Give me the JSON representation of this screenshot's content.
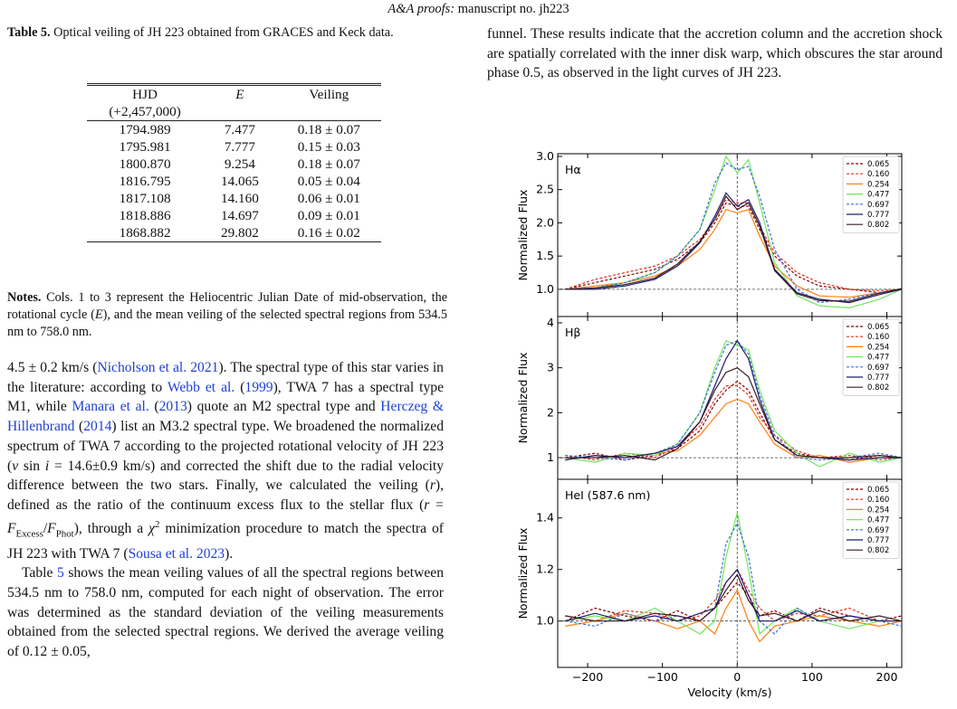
{
  "header": [
    {
      "text": "A&A proofs:",
      "style": "i"
    },
    " manuscript no. jh223"
  ],
  "table_caption": [
    {
      "text": "Table 5.",
      "style": "b"
    },
    " Optical veiling of JH 223 obtained from GRACES and Keck data."
  ],
  "table": {
    "header": [
      [
        "HJD",
        "(+2,457,000)"
      ],
      [
        {
          "text": "E",
          "style": "i"
        }
      ],
      [
        "Veiling"
      ]
    ],
    "rows": [
      [
        "1794.989",
        "7.477",
        "0.18 ± 0.07"
      ],
      [
        "1795.981",
        "7.777",
        "0.15 ± 0.03"
      ],
      [
        "1800.870",
        "9.254",
        "0.18 ± 0.07"
      ],
      [
        "1816.795",
        "14.065",
        "0.05 ± 0.04"
      ],
      [
        "1817.108",
        "14.160",
        "0.06 ± 0.01"
      ],
      [
        "1818.886",
        "14.697",
        "0.09 ± 0.01"
      ],
      [
        "1868.882",
        "29.802",
        "0.16 ± 0.02"
      ]
    ]
  },
  "table_notes": [
    {
      "text": "Notes.",
      "style": "b"
    },
    " Cols. 1 to 3 represent the Heliocentric Julian Date of mid-observation, the rotational cycle (",
    {
      "text": "E",
      "style": "i"
    },
    "), and the mean veiling of the selected spectral regions from 534.5 nm to 758.0 nm."
  ],
  "body": [
    [
      "4.5 ± 0.2 km/s (",
      {
        "text": "Nicholson et al. 2021",
        "style": "link"
      },
      "). The spectral type of this star varies in the literature: according to ",
      {
        "text": "Webb et al.",
        "style": "link"
      },
      " (",
      {
        "text": "1999",
        "style": "link"
      },
      "), TWA 7 has a spectral type M1, while ",
      {
        "text": "Manara et al.",
        "style": "link"
      },
      " (",
      {
        "text": "2013",
        "style": "link"
      },
      ") quote an M2 spectral type and ",
      {
        "text": "Herczeg & Hillenbrand",
        "style": "link"
      },
      " (",
      {
        "text": "2014",
        "style": "link"
      },
      ") list an M3.2 spectral type. We broadened the normalized spectrum of TWA 7 according to the projected rotational velocity of JH 223 (",
      {
        "text": "v",
        "style": "i"
      },
      " sin ",
      {
        "text": "i",
        "style": "i"
      },
      " = 14.6±0.9 km/s) and corrected the shift due to the radial velocity difference between the two stars. Finally, we calculated the veiling (",
      {
        "text": "r",
        "style": "i"
      },
      "), defined as the ratio of the continuum excess flux to the stellar flux (",
      {
        "text": "r",
        "style": "i"
      },
      " = ",
      {
        "text": "F",
        "style": "i"
      },
      {
        "text": "Excess",
        "style": "sub"
      },
      "/",
      {
        "text": "F",
        "style": "i"
      },
      {
        "text": "Phot",
        "style": "sub"
      },
      "), through a ",
      {
        "text": "χ",
        "style": "i"
      },
      {
        "text": "2",
        "style": "sup"
      },
      " minimization procedure to match the spectra of JH 223 with TWA 7 (",
      {
        "text": "Sousa et al. 2023",
        "style": "link"
      },
      ")."
    ],
    [
      "Table ",
      {
        "text": "5",
        "style": "link"
      },
      " shows the mean veiling values of all the spectral regions between 534.5 nm to 758.0 nm, computed for each night of observation. The error was determined as the standard deviation of the veiling measurements obtained from the selected spectral regions. We derived the average veiling of 0.12 ± 0.05,"
    ]
  ],
  "right_body": [
    [
      "funnel. These results indicate that the accretion column and the accretion shock are spatially correlated with the inner disk warp, which obscures the star around phase 0.5, as observed in the light curves of JH 223."
    ]
  ],
  "chart_data": [
    {
      "type": "line",
      "label": "Hα",
      "ylabel": "Normalized Flux",
      "x": [
        -230,
        -190,
        -150,
        -110,
        -80,
        -50,
        -30,
        -15,
        0,
        15,
        30,
        50,
        80,
        110,
        150,
        190,
        220
      ],
      "xlim": [
        -240,
        220
      ],
      "ylim": [
        0.59,
        3.04
      ],
      "xticks": [
        -200,
        -100,
        0,
        100,
        200
      ],
      "yticks": [
        {
          "value": 1,
          "label": "1.0"
        },
        1.5,
        {
          "value": 2,
          "label": "2.0"
        },
        2.5,
        {
          "value": 3,
          "label": "3.0"
        }
      ],
      "hline": 1,
      "vline": 0,
      "legend": "upper right",
      "series": [
        {
          "name": "0.065",
          "color": "#8b0000",
          "dash": true,
          "values": [
            1.0,
            1.1,
            1.2,
            1.3,
            1.45,
            1.7,
            2.0,
            2.3,
            2.25,
            2.25,
            1.9,
            1.5,
            1.2,
            1.05,
            1.0,
            0.95,
            1.0
          ]
        },
        {
          "name": "0.160",
          "color": "#e0301e",
          "dash": true,
          "values": [
            1.0,
            1.15,
            1.25,
            1.35,
            1.5,
            1.75,
            2.05,
            2.35,
            2.3,
            2.3,
            1.95,
            1.55,
            1.25,
            1.1,
            1.0,
            0.98,
            1.0
          ]
        },
        {
          "name": "0.254",
          "color": "#ff7f0e",
          "dash": false,
          "values": [
            1.0,
            1.05,
            1.1,
            1.2,
            1.35,
            1.6,
            1.9,
            2.2,
            2.15,
            2.2,
            1.8,
            1.35,
            1.05,
            0.9,
            0.88,
            0.95,
            1.0
          ]
        },
        {
          "name": "0.477",
          "color": "#6ee85a",
          "dash": false,
          "values": [
            1.0,
            1.02,
            1.1,
            1.25,
            1.5,
            1.9,
            2.5,
            3.0,
            2.75,
            2.95,
            2.3,
            1.4,
            0.9,
            0.75,
            0.72,
            0.85,
            1.0
          ]
        },
        {
          "name": "0.697",
          "color": "#4169e1",
          "dash": true,
          "values": [
            1.0,
            1.02,
            1.1,
            1.25,
            1.5,
            1.9,
            2.6,
            2.9,
            2.8,
            2.85,
            2.4,
            1.6,
            1.0,
            0.8,
            0.85,
            0.95,
            1.0
          ]
        },
        {
          "name": "0.777",
          "color": "#1c1c6e",
          "dash": false,
          "values": [
            1.0,
            1.0,
            1.05,
            1.15,
            1.35,
            1.7,
            2.1,
            2.45,
            2.25,
            2.35,
            2.0,
            1.3,
            0.95,
            0.85,
            0.8,
            0.92,
            1.0
          ]
        },
        {
          "name": "0.802",
          "color": "#3a1a22",
          "dash": false,
          "values": [
            1.0,
            1.02,
            1.07,
            1.17,
            1.38,
            1.72,
            2.05,
            2.4,
            2.2,
            2.3,
            1.95,
            1.28,
            0.93,
            0.83,
            0.82,
            0.94,
            1.01
          ]
        }
      ]
    },
    {
      "type": "line",
      "label": "Hβ",
      "ylabel": "Normalized Flux",
      "x": [
        -230,
        -190,
        -150,
        -110,
        -80,
        -50,
        -30,
        -15,
        0,
        15,
        30,
        50,
        80,
        110,
        150,
        190,
        220
      ],
      "xlim": [
        -240,
        220
      ],
      "ylim": [
        0.52,
        4.14
      ],
      "xticks": [
        -200,
        -100,
        0,
        100,
        200
      ],
      "yticks": [
        1,
        2,
        3,
        4
      ],
      "hline": 1,
      "vline": 0,
      "legend": "upper right",
      "series": [
        {
          "name": "0.065",
          "color": "#8b0000",
          "dash": true,
          "values": [
            1.0,
            1.1,
            0.95,
            1.05,
            1.2,
            1.6,
            2.2,
            2.5,
            2.7,
            2.5,
            2.0,
            1.4,
            1.1,
            1.0,
            0.95,
            1.05,
            1.0
          ]
        },
        {
          "name": "0.160",
          "color": "#e0301e",
          "dash": true,
          "values": [
            1.05,
            0.95,
            1.1,
            1.0,
            1.25,
            1.7,
            2.3,
            2.6,
            2.6,
            2.4,
            1.9,
            1.5,
            1.15,
            1.0,
            1.05,
            0.95,
            1.0
          ]
        },
        {
          "name": "0.254",
          "color": "#ff7f0e",
          "dash": false,
          "values": [
            0.95,
            1.05,
            1.0,
            1.1,
            1.15,
            1.5,
            1.9,
            2.2,
            2.3,
            2.2,
            1.8,
            1.3,
            1.0,
            1.05,
            0.9,
            1.0,
            1.0
          ]
        },
        {
          "name": "0.477",
          "color": "#6ee85a",
          "dash": false,
          "values": [
            1.0,
            0.9,
            1.1,
            1.05,
            1.3,
            2.0,
            3.0,
            3.6,
            3.5,
            3.4,
            2.5,
            1.6,
            1.1,
            0.8,
            1.1,
            0.9,
            1.0
          ]
        },
        {
          "name": "0.697",
          "color": "#4169e1",
          "dash": true,
          "values": [
            1.05,
            1.0,
            0.95,
            1.1,
            1.3,
            2.0,
            2.9,
            3.5,
            3.6,
            3.3,
            2.4,
            1.5,
            1.0,
            0.95,
            1.0,
            1.1,
            1.0
          ]
        },
        {
          "name": "0.777",
          "color": "#1c1c6e",
          "dash": false,
          "values": [
            0.95,
            1.05,
            1.0,
            1.1,
            1.25,
            1.8,
            2.6,
            3.2,
            3.6,
            3.2,
            2.3,
            1.4,
            1.05,
            1.0,
            0.95,
            1.0,
            1.0
          ]
        },
        {
          "name": "0.802",
          "color": "#3a1a22",
          "dash": false,
          "values": [
            1.0,
            1.0,
            1.05,
            0.95,
            1.2,
            1.8,
            2.5,
            2.9,
            3.0,
            2.8,
            2.2,
            1.4,
            1.05,
            1.0,
            1.0,
            1.05,
            1.0
          ]
        }
      ]
    },
    {
      "type": "line",
      "label": "HeI (587.6 nm)",
      "ylabel": "Normalized Flux",
      "xlabel": "Velocity (km/s)",
      "x": [
        -230,
        -190,
        -150,
        -110,
        -80,
        -50,
        -30,
        -15,
        0,
        15,
        30,
        50,
        80,
        110,
        150,
        190,
        220
      ],
      "xlim": [
        -240,
        220
      ],
      "ylim": [
        0.82,
        1.55
      ],
      "xticks": [
        {
          "value": -200,
          "label": "−200"
        },
        {
          "value": -100,
          "label": "−100"
        },
        0,
        100,
        200
      ],
      "yticks": [
        {
          "value": 1,
          "label": "1.0"
        },
        1.2,
        1.4
      ],
      "hline": 1,
      "vline": 0,
      "legend": "upper right",
      "series": [
        {
          "name": "0.065",
          "color": "#8b0000",
          "dash": true,
          "values": [
            1.0,
            1.05,
            1.02,
            1.0,
            1.04,
            1.0,
            1.05,
            1.1,
            1.15,
            1.1,
            1.02,
            1.04,
            1.0,
            1.05,
            1.02,
            1.0,
            1.02
          ]
        },
        {
          "name": "0.160",
          "color": "#e0301e",
          "dash": true,
          "values": [
            1.02,
            1.0,
            1.04,
            1.03,
            1.0,
            1.02,
            1.08,
            1.15,
            1.2,
            1.12,
            1.05,
            1.0,
            1.03,
            1.02,
            1.05,
            1.0,
            1.0
          ]
        },
        {
          "name": "0.254",
          "color": "#ff7f0e",
          "dash": false,
          "values": [
            0.98,
            1.0,
            1.03,
            1.0,
            0.97,
            1.0,
            0.95,
            1.05,
            1.12,
            1.0,
            0.92,
            0.98,
            1.0,
            1.02,
            1.0,
            0.98,
            1.0
          ]
        },
        {
          "name": "0.477",
          "color": "#6ee85a",
          "dash": false,
          "values": [
            1.0,
            1.02,
            1.0,
            1.05,
            1.0,
            0.95,
            1.0,
            1.25,
            1.42,
            1.2,
            0.95,
            1.0,
            1.05,
            1.0,
            0.97,
            1.0,
            1.0
          ]
        },
        {
          "name": "0.697",
          "color": "#4169e1",
          "dash": true,
          "values": [
            1.0,
            0.98,
            1.03,
            1.0,
            1.02,
            1.0,
            1.05,
            1.3,
            1.38,
            1.25,
            1.0,
            0.95,
            1.05,
            1.0,
            1.02,
            1.0,
            0.98
          ]
        },
        {
          "name": "0.777",
          "color": "#1c1c6e",
          "dash": false,
          "values": [
            1.0,
            1.03,
            1.0,
            1.02,
            1.0,
            1.03,
            1.05,
            1.15,
            1.2,
            1.1,
            1.0,
            1.0,
            1.04,
            1.0,
            1.02,
            1.0,
            1.0
          ]
        },
        {
          "name": "0.802",
          "color": "#3a1a22",
          "dash": false,
          "values": [
            1.02,
            1.0,
            1.0,
            1.03,
            1.02,
            1.0,
            1.05,
            1.12,
            1.18,
            1.08,
            1.02,
            1.03,
            1.0,
            1.04,
            1.0,
            1.02,
            1.0
          ]
        }
      ]
    }
  ]
}
